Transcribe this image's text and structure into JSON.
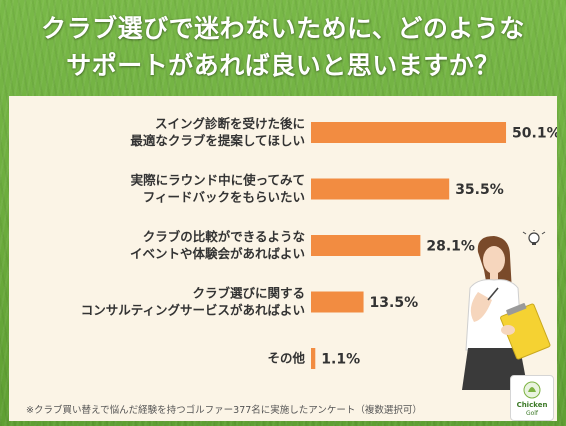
{
  "title": {
    "line1": "クラブ選びで迷わないために、どのような",
    "line2": "サポートがあれば良いと思いますか？"
  },
  "chart_data": {
    "type": "bar",
    "orientation": "horizontal",
    "categories": [
      [
        "スイング診断を受けた後に",
        "最適なクラブを提案してほしい"
      ],
      [
        "実際にラウンド中に使ってみて",
        "フィードバックをもらいたい"
      ],
      [
        "クラブの比較ができるような",
        "イベントや体験会があればよい"
      ],
      [
        "クラブ選びに関する",
        "コンサルティングサービスがあればよい"
      ],
      [
        "その他"
      ]
    ],
    "values": [
      50.1,
      35.5,
      28.1,
      13.5,
      1.1
    ],
    "value_labels": [
      "50.1%",
      "35.5%",
      "28.1%",
      "13.5%",
      "1.1%"
    ],
    "xlim": [
      0,
      56
    ],
    "bar_color": "#f28c41",
    "grid": false
  },
  "footnote": "※クラブ買い替えで悩んだ経験を持つゴルファー377名に実施したアンケート（複数選択可）",
  "logo": {
    "line1": "Chicken",
    "line2": "Golf"
  },
  "colors": {
    "background_grass": "#6cae3c",
    "panel": "#fbf4e6",
    "bar": "#f28c41",
    "text": "#333333"
  }
}
